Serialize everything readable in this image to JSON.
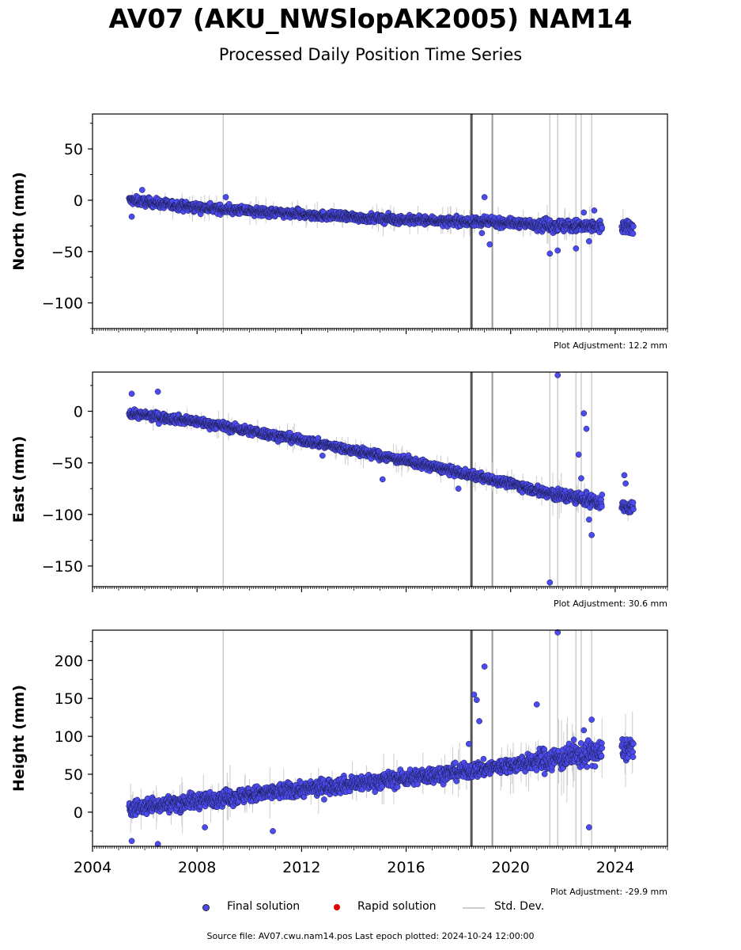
{
  "title": "AV07 (AKU_NWSlopAK2005) NAM14",
  "subtitle": "Processed Daily Position Time Series",
  "footer": "Source file: AV07.cwu.nam14.pos  Last epoch plotted: 2024-10-24 12:00:00",
  "legend": {
    "final": "Final solution",
    "rapid": "Rapid solution",
    "std": "Std. Dev."
  },
  "colors": {
    "final": "#4b4bf0",
    "rapid": "#e00000",
    "std": "#cccccc",
    "offset_dark": "#555555",
    "offset_light": "#cccccc"
  },
  "chart_data": [
    {
      "type": "scatter",
      "ylabel": "North (mm)",
      "ylim": [
        -125,
        84
      ],
      "yticks": [
        50,
        0,
        -50,
        -100
      ],
      "yticklabels": [
        "50",
        "0",
        "−50",
        "−100"
      ],
      "xlim": [
        2004,
        2026
      ],
      "adjustment": "Plot Adjustment: 12.2 mm",
      "trend": [
        [
          2005.4,
          0
        ],
        [
          2008,
          -7
        ],
        [
          2012,
          -14
        ],
        [
          2016,
          -19
        ],
        [
          2018.5,
          -21
        ],
        [
          2020,
          -22
        ],
        [
          2022,
          -25
        ],
        [
          2024.7,
          -27
        ]
      ],
      "noise": 4,
      "outliers": [
        [
          2005.5,
          -16
        ],
        [
          2005.9,
          10
        ],
        [
          2009.1,
          3
        ],
        [
          2018.9,
          -32
        ],
        [
          2019.0,
          3
        ],
        [
          2019.2,
          -43
        ],
        [
          2021.5,
          -52
        ],
        [
          2021.8,
          -49
        ],
        [
          2022.5,
          -47
        ],
        [
          2022.8,
          -12
        ],
        [
          2023.0,
          -40
        ],
        [
          2023.2,
          -10
        ]
      ],
      "gaps": [
        [
          2023.5,
          2024.25
        ]
      ]
    },
    {
      "type": "scatter",
      "ylabel": "East (mm)",
      "ylim": [
        -170,
        38
      ],
      "yticks": [
        0,
        -50,
        -100,
        -150
      ],
      "yticklabels": [
        "0",
        "−50",
        "−100",
        "−150"
      ],
      "xlim": [
        2004,
        2026
      ],
      "adjustment": "Plot Adjustment: 30.6 mm",
      "trend": [
        [
          2005.4,
          -2
        ],
        [
          2008,
          -10
        ],
        [
          2012,
          -28
        ],
        [
          2016,
          -48
        ],
        [
          2018.5,
          -62
        ],
        [
          2020,
          -70
        ],
        [
          2021.5,
          -80
        ],
        [
          2023,
          -86
        ],
        [
          2024.7,
          -95
        ]
      ],
      "noise": 4,
      "outliers": [
        [
          2005.5,
          17
        ],
        [
          2006.5,
          19
        ],
        [
          2012.8,
          -43
        ],
        [
          2015.1,
          -66
        ],
        [
          2018.0,
          -75
        ],
        [
          2021.5,
          -166
        ],
        [
          2021.8,
          35
        ],
        [
          2022.8,
          -2
        ],
        [
          2022.9,
          -17
        ],
        [
          2022.6,
          -42
        ],
        [
          2023.0,
          -105
        ],
        [
          2023.1,
          -120
        ],
        [
          2022.7,
          -65
        ],
        [
          2024.35,
          -62
        ],
        [
          2024.4,
          -70
        ]
      ],
      "gaps": [
        [
          2023.5,
          2024.25
        ]
      ]
    },
    {
      "type": "scatter",
      "ylabel": "Height (mm)",
      "ylim": [
        -45,
        240
      ],
      "yticks": [
        200,
        150,
        100,
        50,
        0
      ],
      "yticklabels": [
        "200",
        "150",
        "100",
        "50",
        "0"
      ],
      "xlim": [
        2004,
        2026
      ],
      "xticks": [
        2004,
        2008,
        2012,
        2016,
        2020,
        2024
      ],
      "xticklabels": [
        "2004",
        "2008",
        "2012",
        "2016",
        "2020",
        "2024"
      ],
      "adjustment": "Plot Adjustment: -29.9 mm",
      "trend": [
        [
          2005.4,
          5
        ],
        [
          2008,
          15
        ],
        [
          2012,
          30
        ],
        [
          2016,
          45
        ],
        [
          2018.5,
          55
        ],
        [
          2020,
          62
        ],
        [
          2022,
          72
        ],
        [
          2024.7,
          85
        ]
      ],
      "noise": 10,
      "outliers": [
        [
          2005.5,
          -38
        ],
        [
          2006.5,
          -42
        ],
        [
          2008.3,
          -20
        ],
        [
          2010.9,
          -25
        ],
        [
          2018.4,
          90
        ],
        [
          2018.6,
          155
        ],
        [
          2018.7,
          148
        ],
        [
          2018.8,
          120
        ],
        [
          2019.0,
          192
        ],
        [
          2021.0,
          142
        ],
        [
          2021.8,
          237
        ],
        [
          2022.8,
          108
        ],
        [
          2023.1,
          122
        ],
        [
          2023.0,
          -20
        ]
      ],
      "gaps": [
        [
          2023.5,
          2024.25
        ]
      ]
    }
  ],
  "offsets": [
    {
      "x": 2009.0,
      "style": "light"
    },
    {
      "x": 2018.5,
      "style": "dark"
    },
    {
      "x": 2019.3,
      "style": "mid"
    },
    {
      "x": 2021.5,
      "style": "light"
    },
    {
      "x": 2021.8,
      "style": "light"
    },
    {
      "x": 2022.5,
      "style": "light"
    },
    {
      "x": 2022.7,
      "style": "light"
    },
    {
      "x": 2023.1,
      "style": "light"
    }
  ]
}
